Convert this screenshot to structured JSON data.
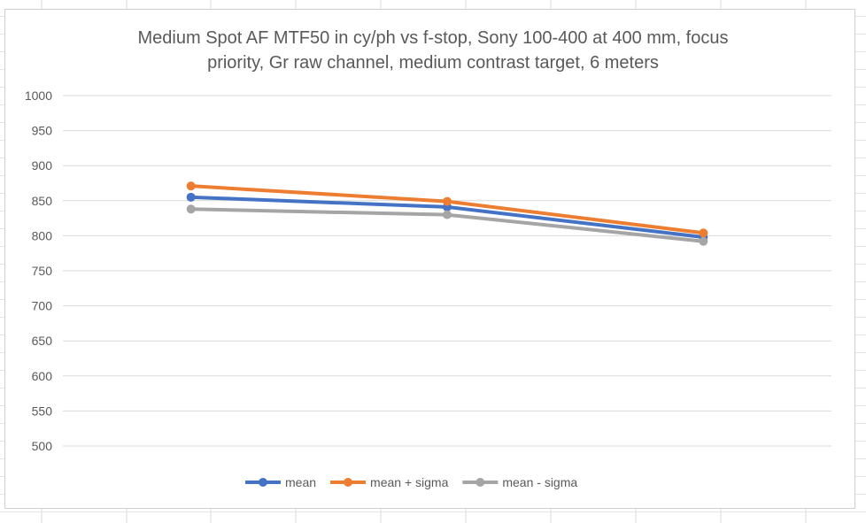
{
  "chart_data": {
    "type": "line",
    "title": "Medium Spot AF MTF50 in cy/ph vs f-stop, Sony 100-400 at 400 mm, focus priority, Gr raw channel, medium contrast target, 6 meters",
    "title_lines": [
      "Medium Spot AF MTF50 in cy/ph vs f-stop, Sony 100-400 at 400 mm, focus",
      "priority, Gr raw channel, medium contrast target, 6 meters"
    ],
    "xlabel": "",
    "ylabel": "",
    "ylim": [
      500,
      1000
    ],
    "yticks": [
      1000,
      950,
      900,
      850,
      800,
      750,
      700,
      650,
      600,
      550,
      500
    ],
    "grid": true,
    "legend_position": "bottom",
    "series": [
      {
        "name": "mean",
        "color": "#4472C4",
        "values": [
          855,
          841,
          798
        ]
      },
      {
        "name": "mean + sigma",
        "color": "#ED7D31",
        "values": [
          871,
          849,
          804
        ]
      },
      {
        "name": "mean - sigma",
        "color": "#A5A5A5",
        "values": [
          838,
          830,
          792
        ]
      }
    ]
  }
}
